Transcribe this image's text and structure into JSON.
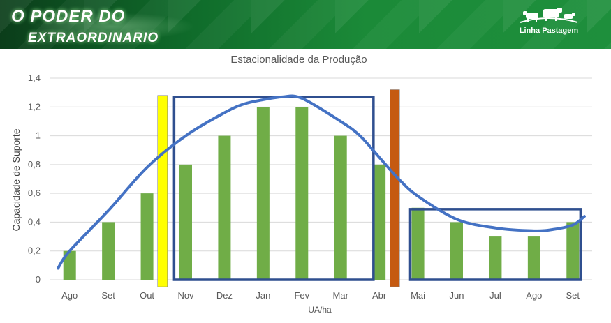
{
  "banner": {
    "title_line1": "O PODER DO",
    "title_line2": "EXTRAORDINARIO",
    "brand": "Linha Pastagem",
    "brand_icon": "cattle-icon",
    "colors": {
      "banner_dark": "#0b3d1a",
      "banner_light": "#1e8f3c"
    }
  },
  "chart_data": {
    "type": "bar",
    "title": "Estacionalidade da Produção",
    "xlabel": "UA/ha",
    "ylabel": "Capacidade de Suporte",
    "categories": [
      "Ago",
      "Set",
      "Out",
      "Nov",
      "Dez",
      "Jan",
      "Fev",
      "Mar",
      "Abr",
      "Mai",
      "Jun",
      "Jul",
      "Ago",
      "Set"
    ],
    "values": [
      0.2,
      0.4,
      0.6,
      0.8,
      1.0,
      1.2,
      1.2,
      1.0,
      0.8,
      0.5,
      0.4,
      0.3,
      0.3,
      0.4
    ],
    "ylim": [
      0,
      1.4
    ],
    "yticks": [
      0,
      0.2,
      0.4,
      0.6,
      0.8,
      1.0,
      1.2,
      1.4
    ],
    "ytick_labels": [
      "0",
      "0,2",
      "0,4",
      "0,6",
      "0,8",
      "1",
      "1,2",
      "1,4"
    ],
    "grid": true,
    "bar_color": "#70ad47",
    "trend_curve": {
      "color": "#4472c4",
      "points": [
        [
          -0.3,
          0.08
        ],
        [
          0,
          0.2
        ],
        [
          1,
          0.48
        ],
        [
          2,
          0.78
        ],
        [
          3,
          1.0
        ],
        [
          4,
          1.16
        ],
        [
          4.5,
          1.22
        ],
        [
          5,
          1.25
        ],
        [
          5.5,
          1.27
        ],
        [
          6,
          1.26
        ],
        [
          7,
          1.1
        ],
        [
          7.5,
          1.0
        ],
        [
          8,
          0.85
        ],
        [
          8.5,
          0.7
        ],
        [
          9,
          0.58
        ],
        [
          10,
          0.42
        ],
        [
          11,
          0.36
        ],
        [
          12,
          0.34
        ],
        [
          12.5,
          0.35
        ],
        [
          13,
          0.38
        ],
        [
          13.3,
          0.44
        ]
      ]
    },
    "annotations": [
      {
        "kind": "marker-bar",
        "color": "#ffff00",
        "x": 2.4,
        "y_top": 1.28
      },
      {
        "kind": "marker-bar",
        "color": "#c55a11",
        "x": 8.4,
        "y_top": 1.32
      },
      {
        "kind": "box",
        "color": "#2f4f8f",
        "x_range": [
          2.7,
          7.85
        ],
        "y_range": [
          0,
          1.27
        ]
      },
      {
        "kind": "box",
        "color": "#2f4f8f",
        "x_range": [
          8.8,
          13.2
        ],
        "y_range": [
          0,
          0.49
        ]
      }
    ]
  }
}
